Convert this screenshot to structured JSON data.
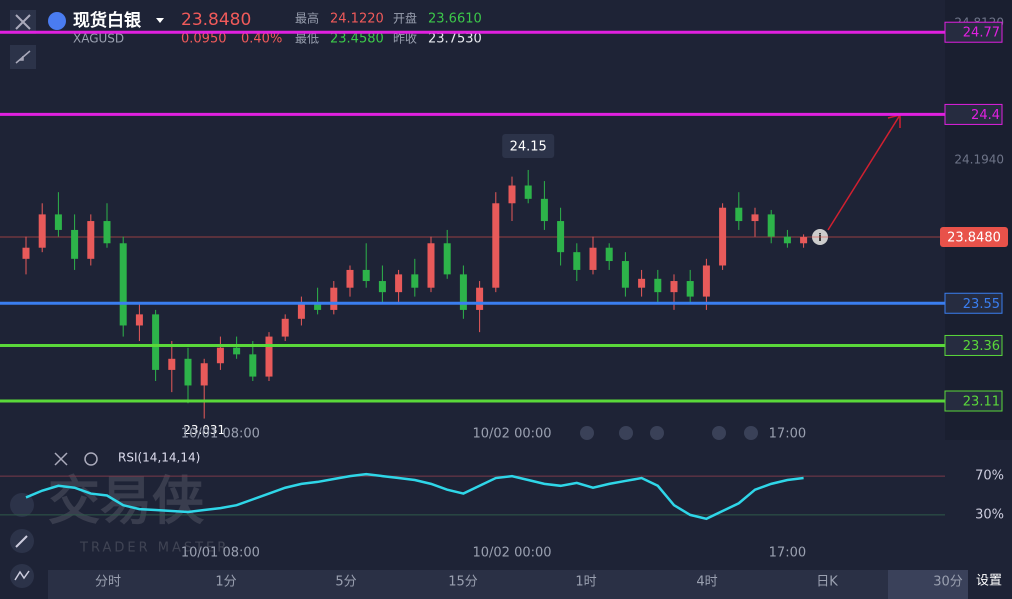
{
  "header": {
    "name": "现货白银",
    "symbol": "XAGUSD",
    "price": "23.8480",
    "change": "0.0950",
    "change_pct": "0.40%",
    "high_label": "最高",
    "high": "24.1220",
    "open_label": "开盘",
    "open": "23.6610",
    "low_label": "最低",
    "low": "23.4580",
    "prev_label": "昨收",
    "prev": "23.7530"
  },
  "chart_data": {
    "type": "candlestick",
    "up_color": "#e85a5a",
    "down_color": "#2db34a",
    "ylim": [
      22.975,
      24.915
    ],
    "yticks": [
      {
        "value": 24.812,
        "label": "24.8120"
      },
      {
        "value": 24.194,
        "label": "24.1940"
      }
    ],
    "last": {
      "value": 23.848,
      "label": "23.8480",
      "color": "#e8524a"
    },
    "levels": [
      {
        "value": 24.77,
        "color": "#e020e0"
      },
      {
        "value": 24.4,
        "color": "#e020e0"
      },
      {
        "value": 23.55,
        "color": "#3a7ef0"
      },
      {
        "value": 23.36,
        "color": "#5ad83a"
      },
      {
        "value": 23.11,
        "color": "#5ad83a"
      }
    ],
    "high_note": 24.15,
    "low_note": 23.031,
    "categories": [
      null,
      null,
      null,
      null,
      null,
      null,
      null,
      null,
      null,
      null,
      null,
      null,
      "10/01 08:00",
      null,
      null,
      null,
      null,
      null,
      null,
      null,
      null,
      null,
      null,
      null,
      null,
      null,
      null,
      null,
      null,
      null,
      "10/02 00:00",
      null,
      null,
      null,
      null,
      null,
      null,
      null,
      null,
      null,
      null,
      null,
      null,
      null,
      null,
      null,
      null,
      "17:00",
      null
    ],
    "ohlc": [
      [
        23.75,
        23.85,
        23.68,
        23.8
      ],
      [
        23.8,
        24.0,
        23.78,
        23.95
      ],
      [
        23.95,
        24.05,
        23.85,
        23.88
      ],
      [
        23.88,
        23.95,
        23.7,
        23.75
      ],
      [
        23.75,
        23.95,
        23.72,
        23.92
      ],
      [
        23.92,
        24.0,
        23.8,
        23.82
      ],
      [
        23.82,
        23.85,
        23.4,
        23.45
      ],
      [
        23.45,
        23.55,
        23.38,
        23.5
      ],
      [
        23.5,
        23.52,
        23.2,
        23.25
      ],
      [
        23.25,
        23.38,
        23.15,
        23.3
      ],
      [
        23.3,
        23.35,
        23.1,
        23.18
      ],
      [
        23.18,
        23.3,
        23.031,
        23.28
      ],
      [
        23.28,
        23.4,
        23.25,
        23.35
      ],
      [
        23.35,
        23.4,
        23.3,
        23.32
      ],
      [
        23.32,
        23.38,
        23.2,
        23.22
      ],
      [
        23.22,
        23.42,
        23.2,
        23.4
      ],
      [
        23.4,
        23.5,
        23.38,
        23.48
      ],
      [
        23.48,
        23.58,
        23.45,
        23.55
      ],
      [
        23.55,
        23.62,
        23.5,
        23.52
      ],
      [
        23.52,
        23.65,
        23.5,
        23.62
      ],
      [
        23.62,
        23.72,
        23.58,
        23.7
      ],
      [
        23.7,
        23.82,
        23.62,
        23.65
      ],
      [
        23.65,
        23.72,
        23.55,
        23.6
      ],
      [
        23.6,
        23.7,
        23.55,
        23.68
      ],
      [
        23.68,
        23.75,
        23.58,
        23.62
      ],
      [
        23.62,
        23.85,
        23.6,
        23.82
      ],
      [
        23.82,
        23.88,
        23.66,
        23.68
      ],
      [
        23.68,
        23.72,
        23.48,
        23.52
      ],
      [
        23.52,
        23.65,
        23.42,
        23.62
      ],
      [
        23.62,
        24.05,
        23.6,
        24.0
      ],
      [
        24.0,
        24.12,
        23.92,
        24.08
      ],
      [
        24.08,
        24.15,
        24.0,
        24.02
      ],
      [
        24.02,
        24.1,
        23.88,
        23.92
      ],
      [
        23.92,
        23.98,
        23.72,
        23.78
      ],
      [
        23.78,
        23.82,
        23.65,
        23.7
      ],
      [
        23.7,
        23.85,
        23.68,
        23.8
      ],
      [
        23.8,
        23.82,
        23.7,
        23.74
      ],
      [
        23.74,
        23.78,
        23.58,
        23.62
      ],
      [
        23.62,
        23.7,
        23.58,
        23.66
      ],
      [
        23.66,
        23.7,
        23.55,
        23.6
      ],
      [
        23.6,
        23.68,
        23.52,
        23.65
      ],
      [
        23.65,
        23.7,
        23.55,
        23.58
      ],
      [
        23.58,
        23.75,
        23.52,
        23.72
      ],
      [
        23.72,
        24.0,
        23.7,
        23.98
      ],
      [
        23.98,
        24.05,
        23.88,
        23.92
      ],
      [
        23.92,
        23.98,
        23.85,
        23.95
      ],
      [
        23.95,
        23.97,
        23.82,
        23.85
      ],
      [
        23.85,
        23.88,
        23.8,
        23.82
      ],
      [
        23.82,
        23.86,
        23.8,
        23.848
      ]
    ],
    "rsi": {
      "name": "RSI(14,14,14)",
      "color": "#2fd6e8",
      "ylim": [
        0,
        100
      ],
      "yticks": [
        {
          "value": 70,
          "label": "70%"
        },
        {
          "value": 30,
          "label": "30%"
        }
      ],
      "values": [
        48,
        55,
        60,
        58,
        52,
        50,
        40,
        36,
        35,
        34,
        33,
        35,
        37,
        40,
        46,
        52,
        58,
        62,
        64,
        67,
        70,
        72,
        70,
        68,
        66,
        62,
        56,
        52,
        60,
        68,
        70,
        66,
        62,
        60,
        63,
        58,
        62,
        65,
        68,
        60,
        40,
        30,
        26,
        34,
        42,
        56,
        62,
        66,
        68
      ]
    }
  },
  "watermark": {
    "cn": "交易侠",
    "en": "TRADER MASTER"
  },
  "tabs": [
    "分时",
    "1分",
    "5分",
    "15分",
    "1时",
    "4时",
    "日K",
    "30分"
  ],
  "settings": "设置"
}
